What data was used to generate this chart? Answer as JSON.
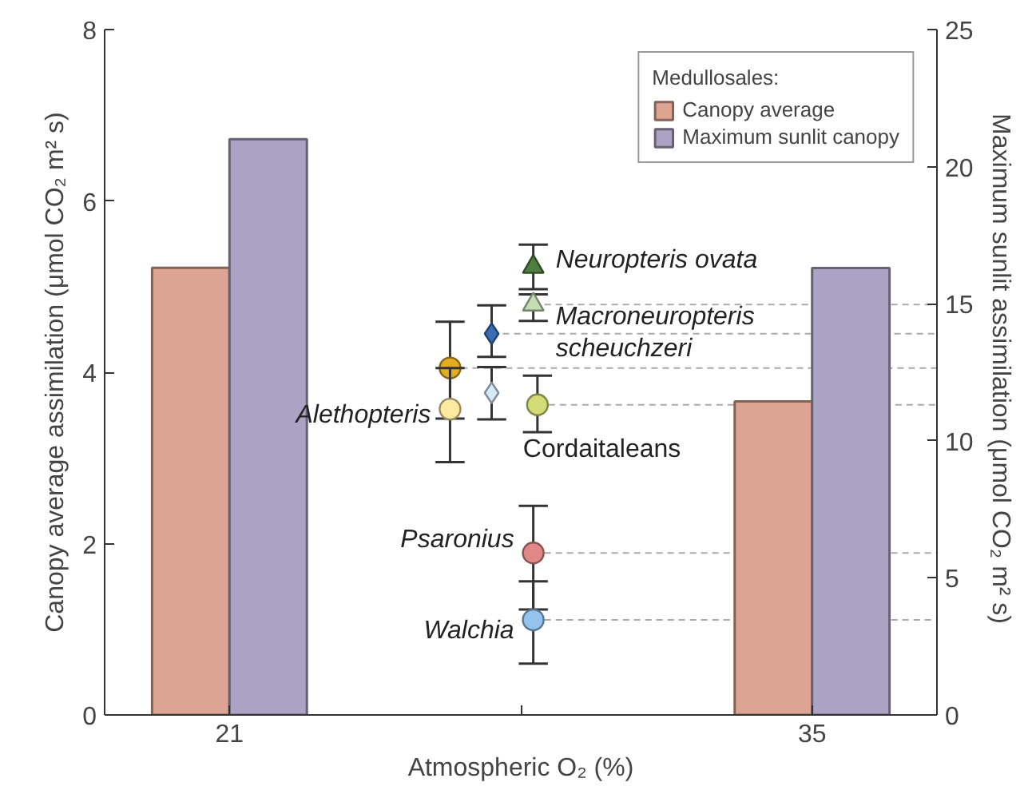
{
  "chart_data": {
    "type": "bar",
    "xlabel": "Atmospheric O₂ (%)",
    "ylabel": "Canopy average assimilation (μmol CO₂ m² s)",
    "y2label": "Maximum sunlit assimilation  (μmol CO₂ m² s)",
    "legend_title": "Medullosales:",
    "legend": "top right",
    "x": [
      21,
      35
    ],
    "xlim": [
      18,
      38
    ],
    "xticks": [
      21,
      {
        "value": 28,
        "label": null
      },
      35
    ],
    "ylim": [
      0,
      8
    ],
    "yticks": [
      0,
      2,
      4,
      6,
      8
    ],
    "y2lim": [
      0,
      25
    ],
    "y2ticks": [
      0,
      5,
      10,
      15,
      20,
      25
    ],
    "series": [
      {
        "name": "Canopy average",
        "color": "#dda494",
        "values": [
          5.22,
          3.66
        ]
      },
      {
        "name": "Maximum sunlit canopy",
        "color": "#aaa3c4",
        "values": [
          21.0,
          16.3
        ],
        "axis": "y2"
      },
      {
        "type": "scatter",
        "marker": "circle",
        "color": "#e4ac22",
        "x": [
          26.3
        ],
        "values": [
          4.05
        ],
        "errors": [
          [
            3.46,
            4.59
          ]
        ]
      },
      {
        "type": "scatter",
        "marker": "circle",
        "name": "Alethopteris",
        "color": "#fdeaa0",
        "x": [
          26.3
        ],
        "values": [
          3.57
        ],
        "errors": [
          [
            2.95,
            4.05
          ]
        ]
      },
      {
        "type": "scatter",
        "marker": "diamond",
        "color": "#3a6db5",
        "x": [
          27.3
        ],
        "values": [
          4.45
        ],
        "errors": [
          [
            4.18,
            4.78
          ]
        ]
      },
      {
        "type": "scatter",
        "marker": "diamond",
        "color": "#d6eafa",
        "x": [
          27.3
        ],
        "values": [
          3.76
        ],
        "errors": [
          [
            3.45,
            4.06
          ]
        ]
      },
      {
        "type": "scatter",
        "marker": "triangle",
        "name": "Neuropteris ovata",
        "color": "#4f7f3f",
        "x": [
          28.3
        ],
        "values": [
          5.23
        ],
        "errors": [
          [
            4.97,
            5.49
          ]
        ]
      },
      {
        "type": "scatter",
        "marker": "triangle",
        "name": "Macroneuropteris\nscheuchzeri",
        "color": "#c5dcb5",
        "x": [
          28.3
        ],
        "values": [
          4.79
        ],
        "errors": [
          [
            4.6,
            4.91
          ]
        ]
      },
      {
        "type": "scatter",
        "marker": "circle",
        "name": "Cordaitaleans",
        "color": "#d4dc78",
        "x": [
          28.4
        ],
        "values": [
          3.62
        ],
        "errors": [
          [
            3.3,
            3.96
          ]
        ]
      },
      {
        "type": "scatter",
        "marker": "circle",
        "name": "Psaronius",
        "color": "#e08888",
        "x": [
          28.3
        ],
        "values": [
          1.89
        ],
        "errors": [
          [
            1.23,
            2.44
          ]
        ]
      },
      {
        "type": "scatter",
        "marker": "circle",
        "name": "Walchia",
        "color": "#94c4ee",
        "x": [
          28.3
        ],
        "values": [
          1.11
        ],
        "errors": [
          [
            0.6,
            1.56
          ]
        ]
      }
    ],
    "ref_lines": [
      {
        "axis": "y",
        "value": 4.79,
        "color": "#aaaaaa",
        "line_style": "dashed"
      },
      {
        "axis": "y",
        "value": 4.45,
        "color": "#aaaaaa",
        "line_style": "dashed"
      },
      {
        "axis": "y",
        "value": 4.05,
        "color": "#aaaaaa",
        "line_style": "dashed"
      },
      {
        "axis": "y",
        "value": 3.62,
        "color": "#aaaaaa",
        "line_style": "dashed"
      },
      {
        "axis": "y",
        "value": 1.89,
        "color": "#aaaaaa",
        "line_style": "dashed"
      },
      {
        "axis": "y",
        "value": 1.11,
        "color": "#aaaaaa",
        "line_style": "dashed"
      }
    ]
  }
}
